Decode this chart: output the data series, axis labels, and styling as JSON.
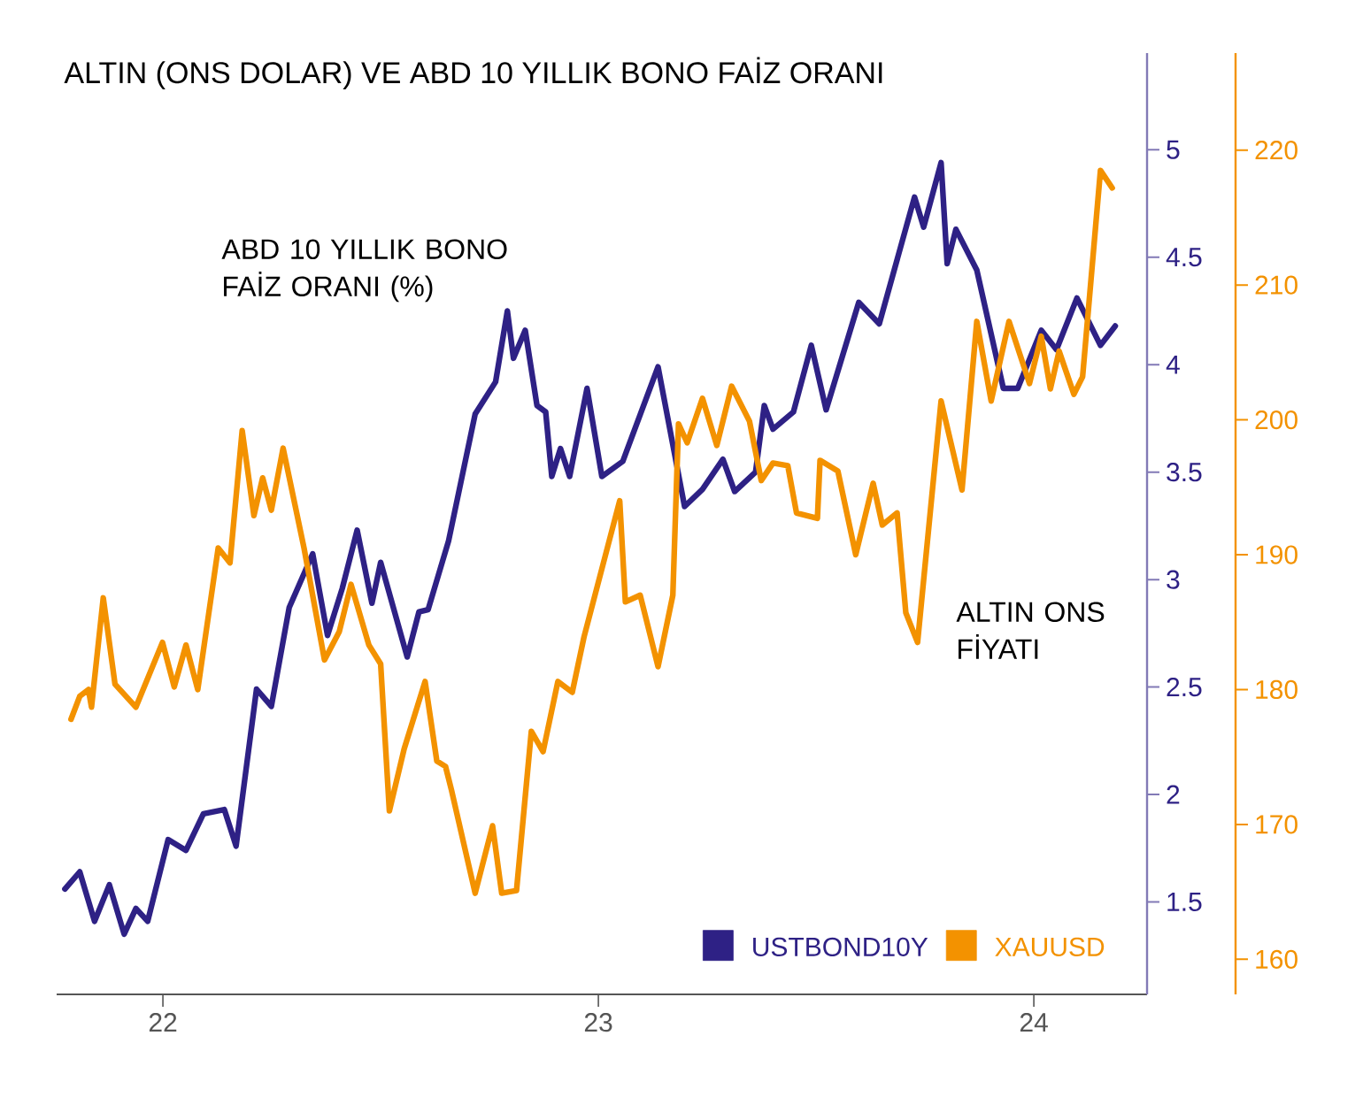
{
  "chart_data": {
    "type": "line",
    "title": "ALTIN (ONS DOLAR) VE ABD 10 YILLIK BONO FAİZ ORANI",
    "annotations": [
      "ABD 10 YILLIK BONO FAİZ ORANI (%)",
      "ALTIN ONS FİYATI"
    ],
    "xlim": [
      2021.756,
      2024.26
    ],
    "xticks": [
      {
        "value": 2022,
        "label": "22"
      },
      {
        "value": 2023,
        "label": "23"
      },
      {
        "value": 2024,
        "label": "24"
      }
    ],
    "ylim": [
      1.07,
      5.45
    ],
    "yticks": [
      1.5,
      2,
      2.5,
      3,
      3.5,
      4,
      4.5,
      5
    ],
    "y2lim": [
      157.4,
      227.2
    ],
    "y2ticks": [
      160,
      170,
      180,
      190,
      200,
      210,
      220
    ],
    "legend": "bottom right",
    "series": [
      {
        "name": "USTBOND10Y",
        "color": "#2e2185",
        "axis": "y",
        "x": [
          2021.775,
          2021.809,
          2021.843,
          2021.877,
          2021.911,
          2021.938,
          2021.965,
          2022.012,
          2022.053,
          2022.093,
          2022.141,
          2022.168,
          2022.215,
          2022.249,
          2022.29,
          2022.344,
          2022.378,
          2022.412,
          2022.446,
          2022.48,
          2022.5,
          2022.561,
          2022.588,
          2022.609,
          2022.656,
          2022.717,
          2022.764,
          2022.791,
          2022.805,
          2022.832,
          2022.859,
          2022.879,
          2022.893,
          2022.913,
          2022.934,
          2022.974,
          2023.008,
          2023.056,
          2023.137,
          2023.198,
          2023.239,
          2023.286,
          2023.313,
          2023.361,
          2023.381,
          2023.401,
          2023.448,
          2023.489,
          2023.523,
          2023.598,
          2023.645,
          2023.726,
          2023.747,
          2023.787,
          2023.801,
          2023.821,
          2023.869,
          2023.93,
          2023.963,
          2024.017,
          2024.052,
          2024.099,
          2024.153,
          2024.187
        ],
        "values": [
          1.56,
          1.64,
          1.41,
          1.58,
          1.35,
          1.47,
          1.41,
          1.79,
          1.74,
          1.91,
          1.93,
          1.76,
          2.49,
          2.41,
          2.87,
          3.12,
          2.74,
          2.96,
          3.23,
          2.89,
          3.08,
          2.64,
          2.85,
          2.86,
          3.18,
          3.77,
          3.92,
          4.25,
          4.03,
          4.16,
          3.81,
          3.78,
          3.48,
          3.61,
          3.48,
          3.89,
          3.48,
          3.55,
          3.99,
          3.34,
          3.42,
          3.56,
          3.41,
          3.5,
          3.81,
          3.7,
          3.78,
          4.09,
          3.79,
          4.29,
          4.19,
          4.78,
          4.64,
          4.94,
          4.47,
          4.63,
          4.44,
          3.89,
          3.89,
          4.16,
          4.07,
          4.31,
          4.09,
          4.18
        ]
      },
      {
        "name": "XAUUSD",
        "color": "#f39200",
        "axis": "y2",
        "x": [
          2021.789,
          2021.809,
          2021.829,
          2021.836,
          2021.863,
          2021.89,
          2021.938,
          2021.999,
          2022.026,
          2022.053,
          2022.08,
          2022.127,
          2022.154,
          2022.182,
          2022.209,
          2022.229,
          2022.249,
          2022.276,
          2022.324,
          2022.371,
          2022.405,
          2022.432,
          2022.473,
          2022.5,
          2022.52,
          2022.554,
          2022.602,
          2022.629,
          2022.649,
          2022.663,
          2022.717,
          2022.757,
          2022.778,
          2022.812,
          2022.846,
          2022.873,
          2022.907,
          2022.94,
          2022.967,
          2023.049,
          2023.062,
          2023.096,
          2023.137,
          2023.171,
          2023.184,
          2023.204,
          2023.239,
          2023.272,
          2023.306,
          2023.347,
          2023.374,
          2023.401,
          2023.435,
          2023.455,
          2023.503,
          2023.509,
          2023.55,
          2023.591,
          2023.631,
          2023.652,
          2023.686,
          2023.706,
          2023.733,
          2023.787,
          2023.835,
          2023.869,
          2023.902,
          2023.943,
          2023.99,
          2024.017,
          2024.038,
          2024.058,
          2024.092,
          2024.112,
          2024.153,
          2024.18
        ],
        "values": [
          177.8,
          179.5,
          180.0,
          178.7,
          186.8,
          180.4,
          178.7,
          183.5,
          180.2,
          183.3,
          180.0,
          190.5,
          189.4,
          199.2,
          192.9,
          195.7,
          193.3,
          197.9,
          190.5,
          182.2,
          184.3,
          187.8,
          183.3,
          181.9,
          171.0,
          175.6,
          180.6,
          174.7,
          174.3,
          172.5,
          164.9,
          169.9,
          164.9,
          165.1,
          176.9,
          175.4,
          180.6,
          179.8,
          183.9,
          194.0,
          186.5,
          187.0,
          181.7,
          187.0,
          199.7,
          198.3,
          201.6,
          198.1,
          202.5,
          199.9,
          195.5,
          196.8,
          196.6,
          193.1,
          192.7,
          197.0,
          196.2,
          190.0,
          195.3,
          192.2,
          193.1,
          185.7,
          183.5,
          201.4,
          194.8,
          207.3,
          201.4,
          207.3,
          202.7,
          206.2,
          202.3,
          205.1,
          201.9,
          203.2,
          218.5,
          217.2
        ]
      }
    ]
  }
}
